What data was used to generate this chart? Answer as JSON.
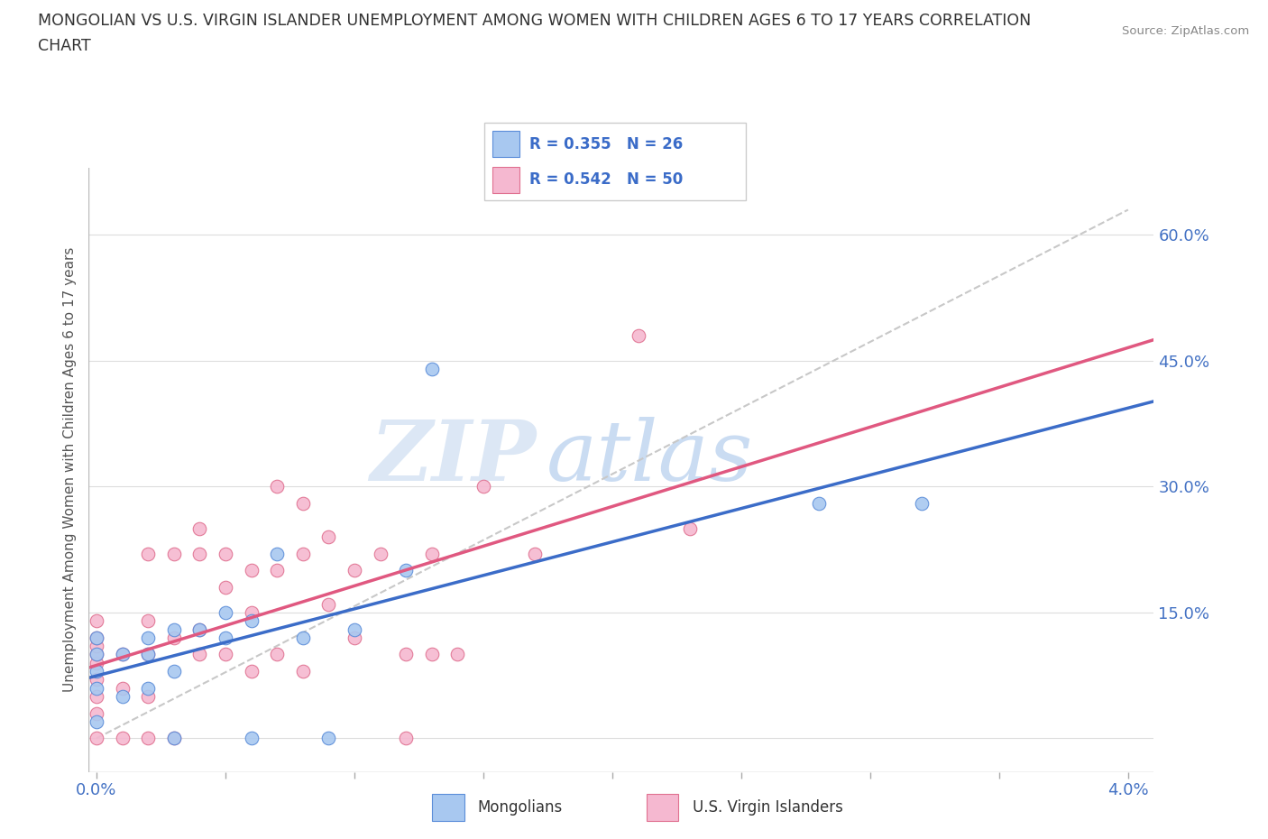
{
  "title_line1": "MONGOLIAN VS U.S. VIRGIN ISLANDER UNEMPLOYMENT AMONG WOMEN WITH CHILDREN AGES 6 TO 17 YEARS CORRELATION",
  "title_line2": "CHART",
  "source_text": "Source: ZipAtlas.com",
  "ylabel": "Unemployment Among Women with Children Ages 6 to 17 years",
  "xlim": [
    -0.0003,
    0.041
  ],
  "ylim": [
    -0.04,
    0.68
  ],
  "xtick_vals": [
    0.0,
    0.005,
    0.01,
    0.015,
    0.02,
    0.025,
    0.03,
    0.035,
    0.04
  ],
  "xtick_labels": [
    "0.0%",
    "",
    "",
    "",
    "",
    "",
    "",
    "",
    "4.0%"
  ],
  "ytick_vals": [
    0.0,
    0.15,
    0.3,
    0.45,
    0.6
  ],
  "ytick_right_labels": [
    "",
    "15.0%",
    "30.0%",
    "45.0%",
    "60.0%"
  ],
  "watermark": "ZIPatlas",
  "mongolian_color": "#A8C8F0",
  "mongolian_edge_color": "#5B8DD9",
  "virgin_color": "#F5B8D0",
  "virgin_edge_color": "#E07090",
  "mongolian_line_color": "#3B6CC8",
  "virgin_line_color": "#E05880",
  "ref_line_color": "#C8C8C8",
  "legend_text_color": "#3B6CC8",
  "R_mongolian": 0.355,
  "N_mongolian": 26,
  "R_virgin": 0.542,
  "N_virgin": 50,
  "background_color": "#FFFFFF",
  "plot_bg_color": "#FFFFFF",
  "grid_color": "#DDDDDD",
  "mong_x": [
    0.0,
    0.0,
    0.0,
    0.0,
    0.0,
    0.001,
    0.001,
    0.002,
    0.002,
    0.002,
    0.003,
    0.003,
    0.003,
    0.004,
    0.005,
    0.005,
    0.006,
    0.006,
    0.007,
    0.008,
    0.009,
    0.01,
    0.012,
    0.013,
    0.028,
    0.032
  ],
  "mong_y": [
    0.02,
    0.06,
    0.08,
    0.1,
    0.12,
    0.05,
    0.1,
    0.06,
    0.1,
    0.12,
    0.0,
    0.08,
    0.13,
    0.13,
    0.12,
    0.15,
    0.0,
    0.14,
    0.22,
    0.12,
    0.0,
    0.13,
    0.2,
    0.44,
    0.28,
    0.28
  ],
  "virg_x": [
    0.0,
    0.0,
    0.0,
    0.0,
    0.0,
    0.0,
    0.0,
    0.0,
    0.0,
    0.001,
    0.001,
    0.001,
    0.002,
    0.002,
    0.002,
    0.002,
    0.002,
    0.003,
    0.003,
    0.003,
    0.004,
    0.004,
    0.004,
    0.004,
    0.005,
    0.005,
    0.005,
    0.006,
    0.006,
    0.006,
    0.007,
    0.007,
    0.007,
    0.008,
    0.008,
    0.008,
    0.009,
    0.009,
    0.01,
    0.01,
    0.011,
    0.012,
    0.012,
    0.013,
    0.013,
    0.014,
    0.015,
    0.017,
    0.021,
    0.023
  ],
  "virg_y": [
    0.0,
    0.03,
    0.05,
    0.07,
    0.09,
    0.1,
    0.11,
    0.12,
    0.14,
    0.0,
    0.06,
    0.1,
    0.0,
    0.05,
    0.1,
    0.14,
    0.22,
    0.0,
    0.12,
    0.22,
    0.1,
    0.13,
    0.22,
    0.25,
    0.1,
    0.18,
    0.22,
    0.08,
    0.15,
    0.2,
    0.1,
    0.2,
    0.3,
    0.08,
    0.22,
    0.28,
    0.16,
    0.24,
    0.12,
    0.2,
    0.22,
    0.0,
    0.1,
    0.1,
    0.22,
    0.1,
    0.3,
    0.22,
    0.48,
    0.25
  ]
}
